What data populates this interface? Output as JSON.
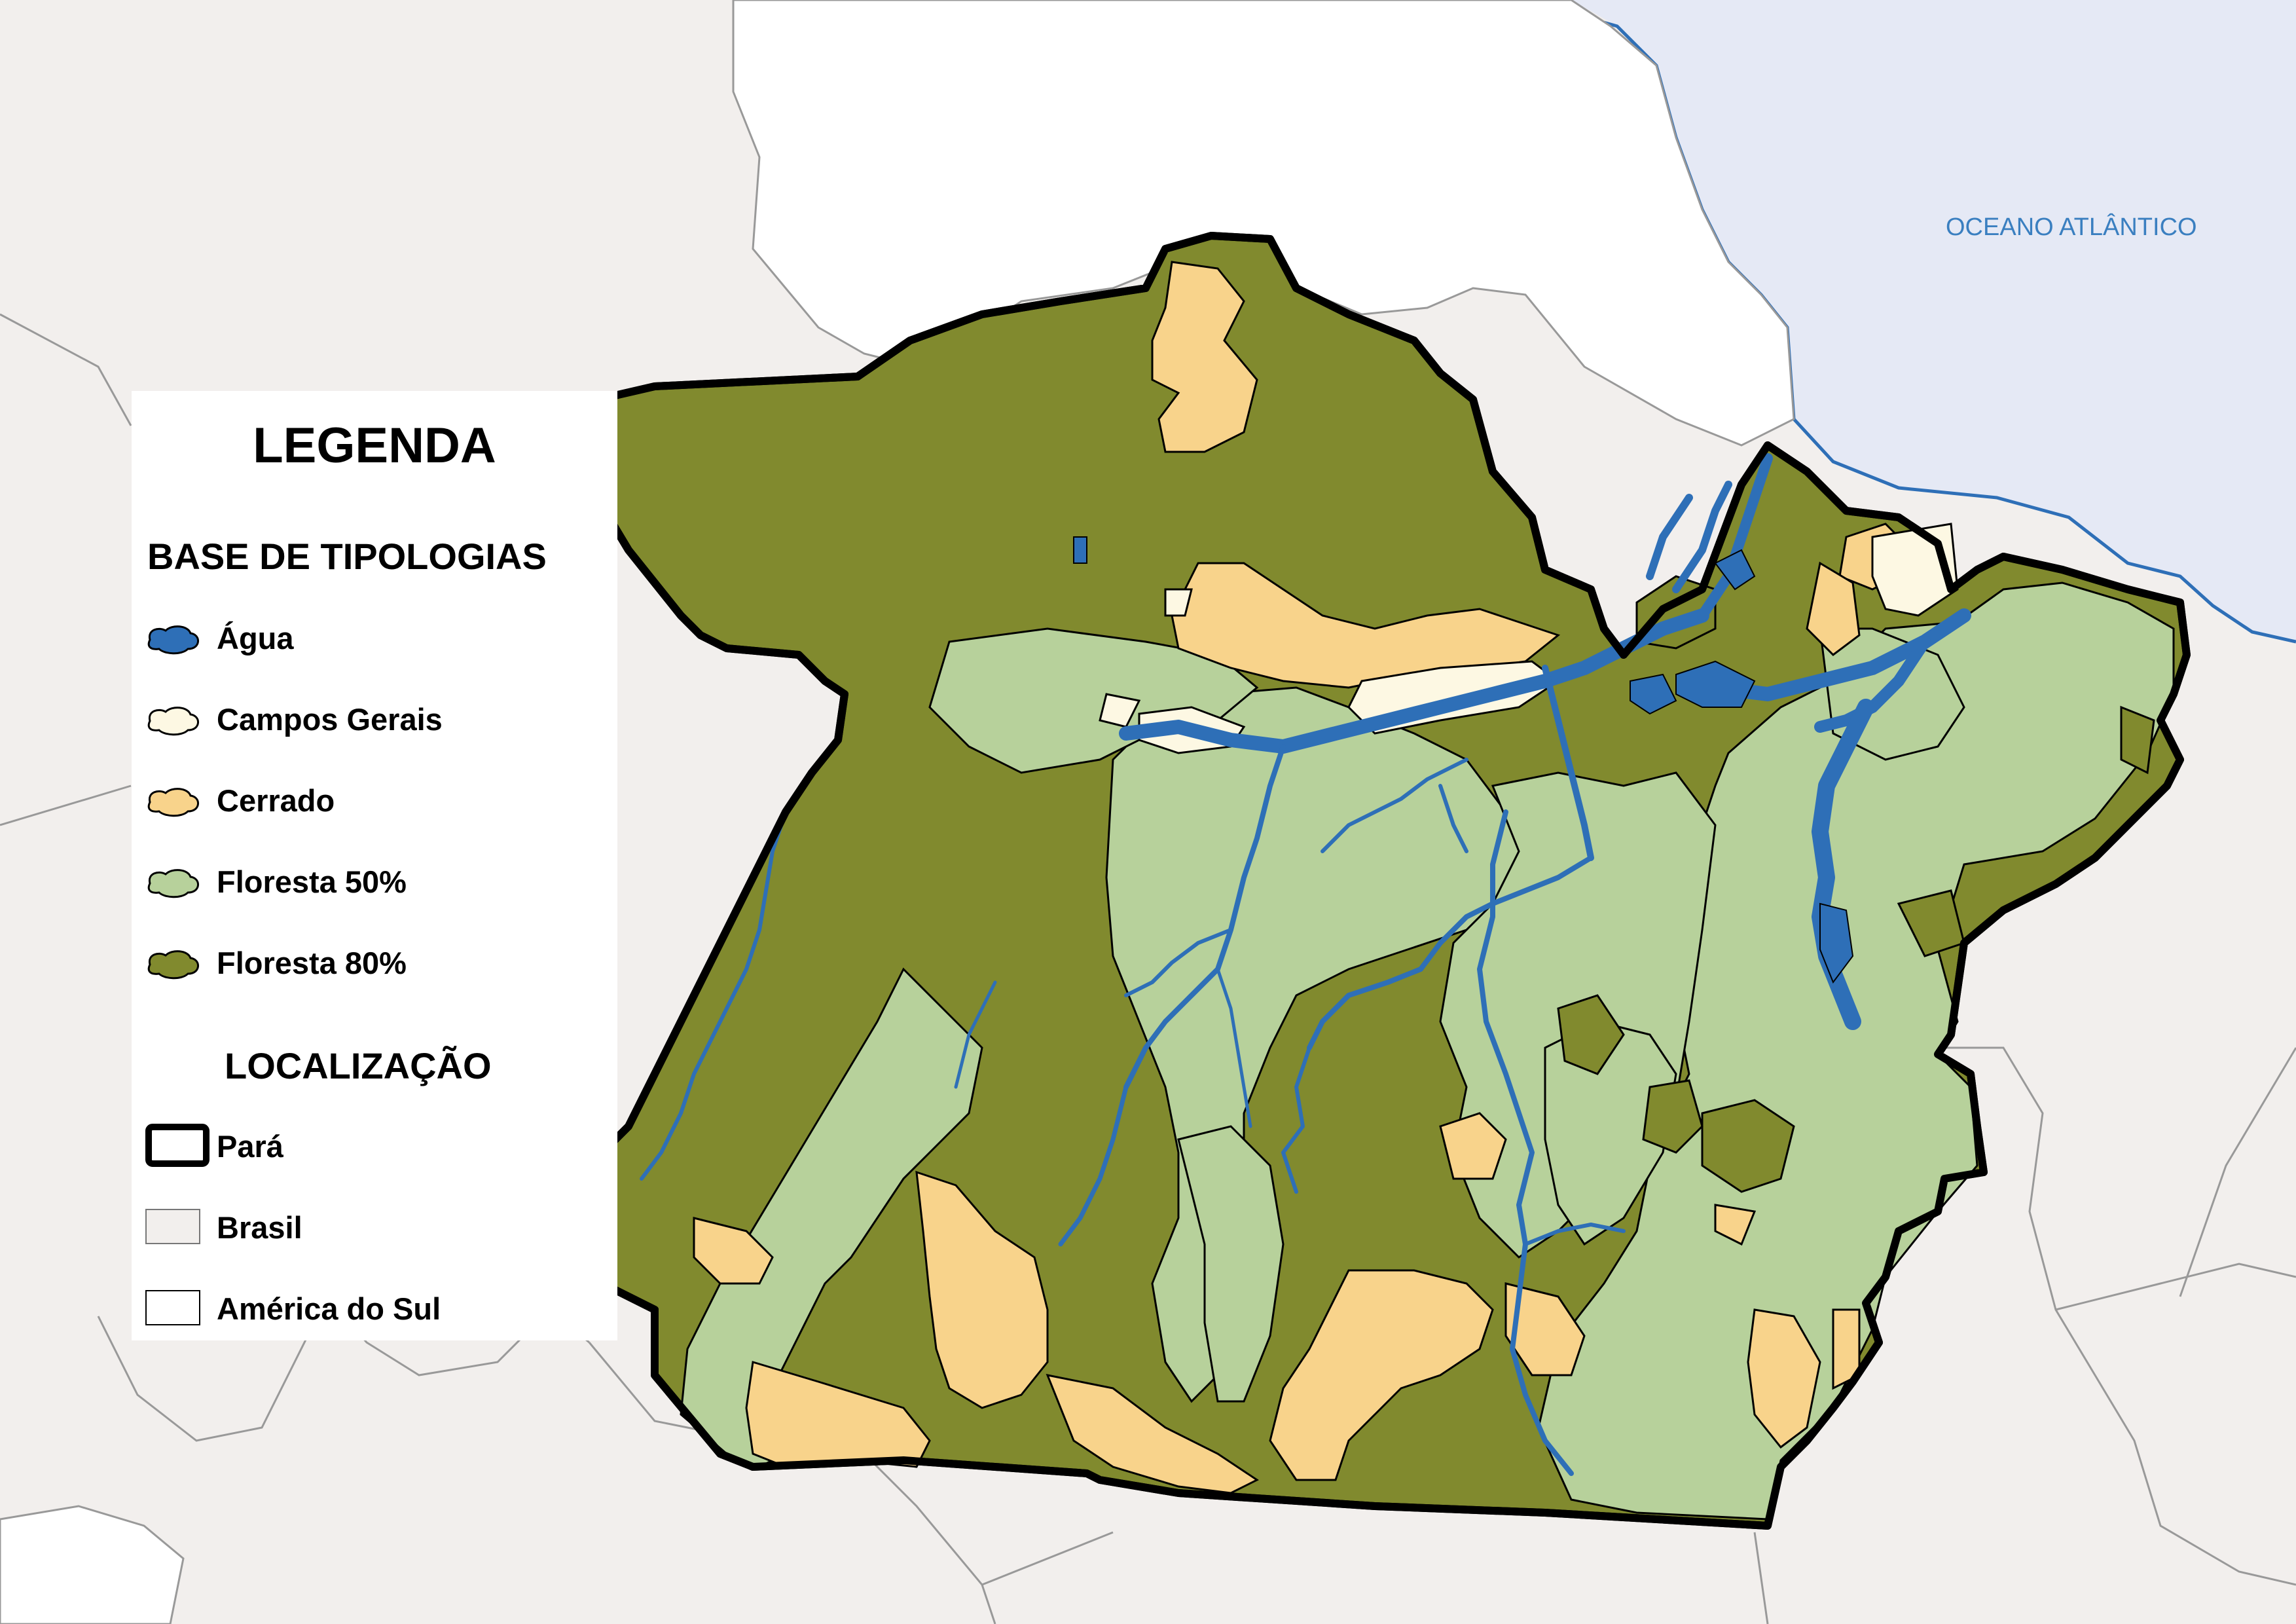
{
  "map": {
    "ocean_label": "OCEANO ATLÂNTICO"
  },
  "legend": {
    "title": "LEGENDA",
    "typologies_title": "BASE DE TIPOLOGIAS",
    "typologies": [
      {
        "label": "Água",
        "color": "#2e6fb7"
      },
      {
        "label": "Campos Gerais",
        "color": "#fdf8e3"
      },
      {
        "label": "Cerrado",
        "color": "#f8d38b"
      },
      {
        "label": "Floresta 50%",
        "color": "#b7d19b"
      },
      {
        "label": "Floresta 80%",
        "color": "#818a2e"
      }
    ],
    "location_title": "LOCALIZAÇÃO",
    "locations": [
      {
        "label": "Pará",
        "color": "#ffffff"
      },
      {
        "label": "Brasil",
        "color": "#f2efed"
      },
      {
        "label": "América do Sul",
        "color": "#ffffff"
      }
    ]
  },
  "colors": {
    "ocean": "#e5e9f5",
    "brasil": "#f2efed",
    "south_america": "#ffffff",
    "border": "#999999",
    "state_outline": "#000000"
  }
}
